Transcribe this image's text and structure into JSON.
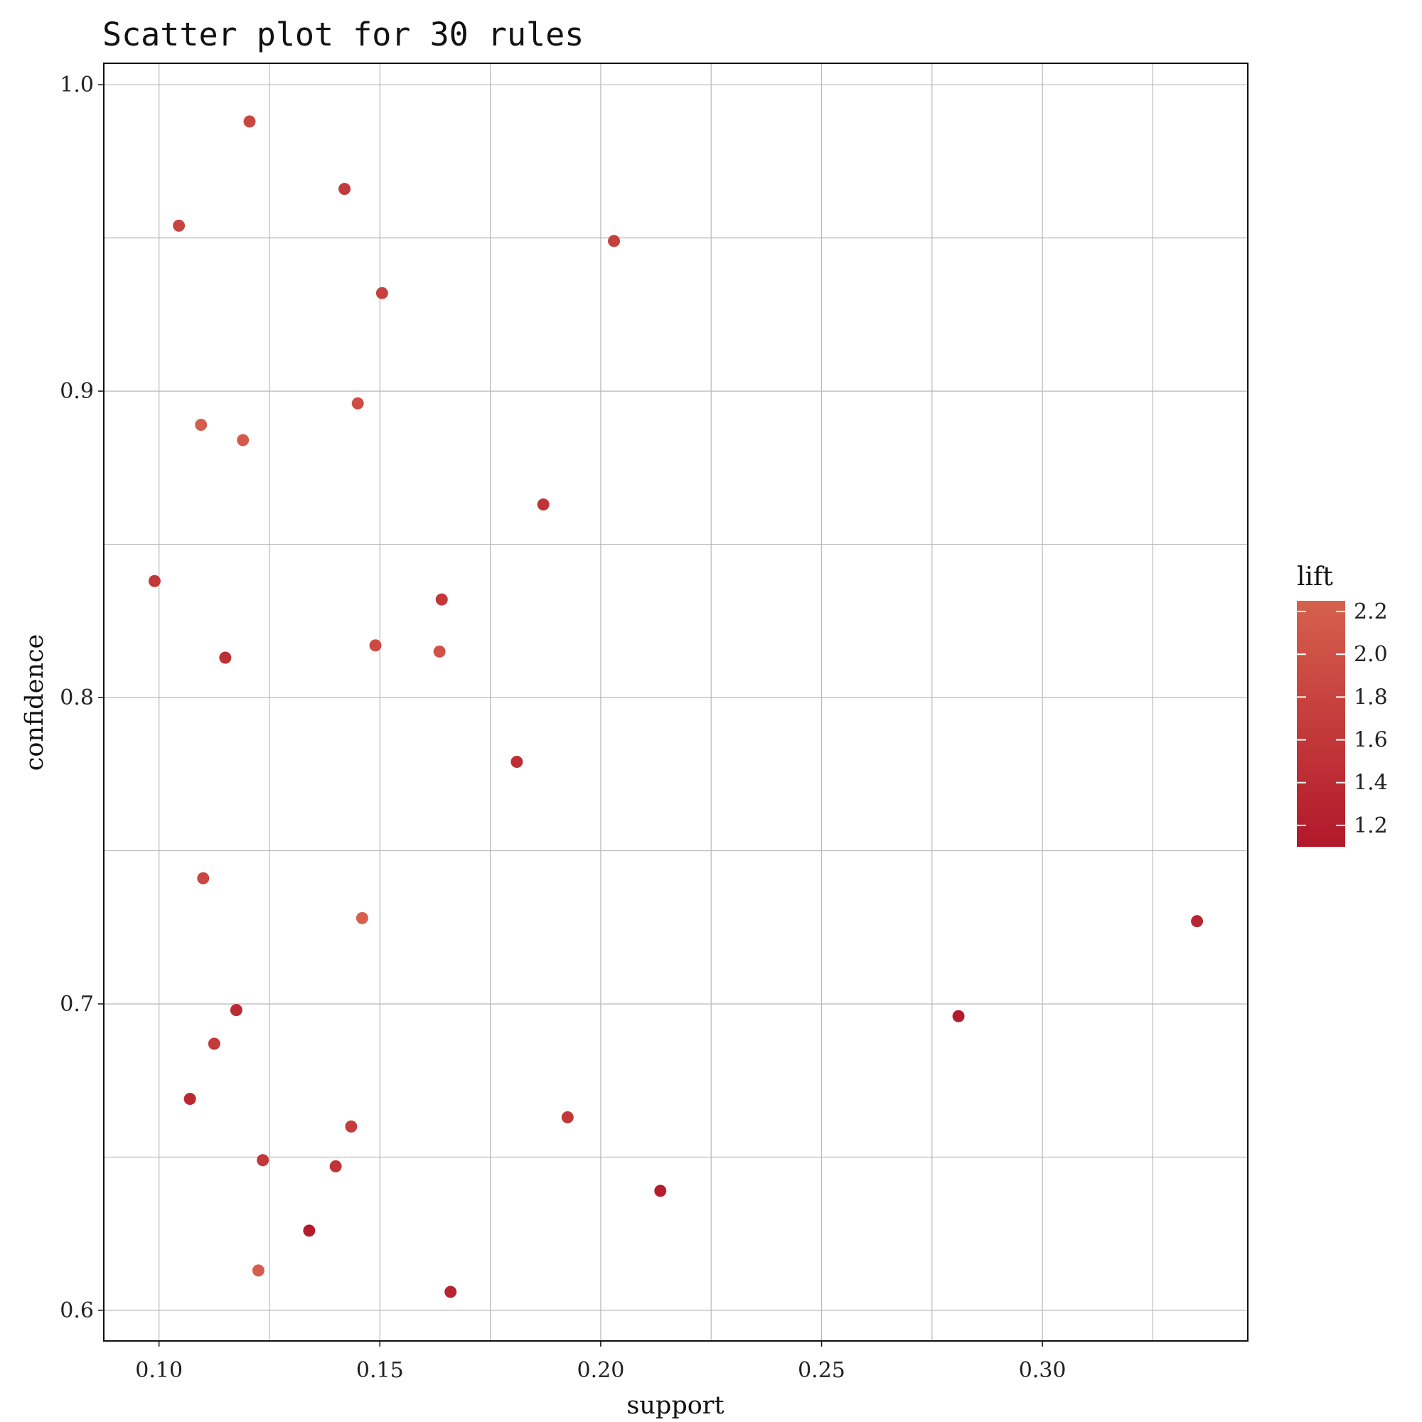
{
  "chart_data": {
    "type": "scatter",
    "title": "Scatter plot for 30 rules",
    "xlabel": "support",
    "ylabel": "confidence",
    "xlim": [
      0.0875,
      0.3465
    ],
    "ylim": [
      0.59,
      1.007
    ],
    "x_ticks": [
      0.1,
      0.15,
      0.2,
      0.25,
      0.3
    ],
    "x_tick_labels": [
      "0.10",
      "0.15",
      "0.20",
      "0.25",
      "0.30"
    ],
    "y_ticks": [
      0.6,
      0.7,
      0.8,
      0.9,
      1.0
    ],
    "y_tick_labels": [
      "0.6",
      "0.7",
      "0.8",
      "0.9",
      "1.0"
    ],
    "x_minor_grid": [
      0.125,
      0.175,
      0.225,
      0.275,
      0.325
    ],
    "y_minor_grid": [
      0.65,
      0.75,
      0.85,
      0.95
    ],
    "grid": true,
    "legend": {
      "title": "lift",
      "position": "right",
      "type": "colorbar",
      "min": 1.1,
      "max": 2.25,
      "ticks": [
        1.2,
        1.4,
        1.6,
        1.8,
        2.0,
        2.2
      ],
      "tick_labels": [
        "1.2",
        "1.4",
        "1.6",
        "1.8",
        "2.0",
        "2.2"
      ],
      "low_color": "#b2182b",
      "high_color": "#d6604d"
    },
    "points": [
      {
        "support": 0.1205,
        "confidence": 0.988,
        "lift": 1.85
      },
      {
        "support": 0.142,
        "confidence": 0.966,
        "lift": 1.65
      },
      {
        "support": 0.1045,
        "confidence": 0.954,
        "lift": 1.8
      },
      {
        "support": 0.203,
        "confidence": 0.949,
        "lift": 1.75
      },
      {
        "support": 0.1505,
        "confidence": 0.932,
        "lift": 1.75
      },
      {
        "support": 0.145,
        "confidence": 0.896,
        "lift": 1.95
      },
      {
        "support": 0.1095,
        "confidence": 0.889,
        "lift": 2.2
      },
      {
        "support": 0.119,
        "confidence": 0.884,
        "lift": 2.15
      },
      {
        "support": 0.187,
        "confidence": 0.863,
        "lift": 1.55
      },
      {
        "support": 0.099,
        "confidence": 0.838,
        "lift": 1.6
      },
      {
        "support": 0.164,
        "confidence": 0.832,
        "lift": 1.6
      },
      {
        "support": 0.149,
        "confidence": 0.817,
        "lift": 1.9
      },
      {
        "support": 0.1635,
        "confidence": 0.815,
        "lift": 2.05
      },
      {
        "support": 0.115,
        "confidence": 0.813,
        "lift": 1.45
      },
      {
        "support": 0.181,
        "confidence": 0.779,
        "lift": 1.45
      },
      {
        "support": 0.11,
        "confidence": 0.741,
        "lift": 1.85
      },
      {
        "support": 0.146,
        "confidence": 0.728,
        "lift": 2.25
      },
      {
        "support": 0.335,
        "confidence": 0.727,
        "lift": 1.3
      },
      {
        "support": 0.1175,
        "confidence": 0.698,
        "lift": 1.4
      },
      {
        "support": 0.281,
        "confidence": 0.696,
        "lift": 1.15
      },
      {
        "support": 0.1125,
        "confidence": 0.687,
        "lift": 1.65
      },
      {
        "support": 0.107,
        "confidence": 0.669,
        "lift": 1.35
      },
      {
        "support": 0.1925,
        "confidence": 0.663,
        "lift": 1.6
      },
      {
        "support": 0.1435,
        "confidence": 0.66,
        "lift": 1.7
      },
      {
        "support": 0.1235,
        "confidence": 0.649,
        "lift": 1.6
      },
      {
        "support": 0.14,
        "confidence": 0.647,
        "lift": 1.55
      },
      {
        "support": 0.2135,
        "confidence": 0.639,
        "lift": 1.2
      },
      {
        "support": 0.134,
        "confidence": 0.626,
        "lift": 1.15
      },
      {
        "support": 0.1225,
        "confidence": 0.613,
        "lift": 2.2
      },
      {
        "support": 0.166,
        "confidence": 0.606,
        "lift": 1.3
      }
    ]
  }
}
